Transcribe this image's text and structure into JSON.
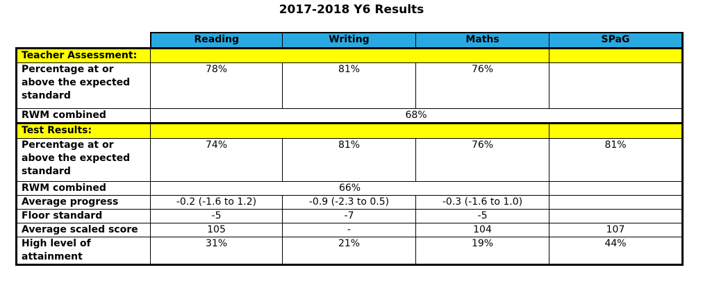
{
  "title": "2017-2018 Y6 Results",
  "table": {
    "columns": [
      "Reading",
      "Writing",
      "Maths",
      "SPaG"
    ],
    "sections": [
      {
        "heading": "Teacher Assessment:",
        "rows": [
          {
            "label": "Percentage at or above the expected standard",
            "cells": [
              "78%",
              "81%",
              "76%"
            ]
          },
          {
            "label": "RWM combined",
            "cells": [
              "68%"
            ]
          }
        ]
      },
      {
        "heading": "Test Results:",
        "rows": [
          {
            "label": "Percentage at or above the expected standard",
            "cells": [
              "74%",
              "81%",
              "76%",
              "81%"
            ]
          },
          {
            "label": "RWM combined",
            "cells": [
              "66%"
            ]
          },
          {
            "label": "Average progress",
            "cells": [
              "-0.2 (-1.6 to 1.2)",
              "-0.9 (-2.3 to 0.5)",
              "-0.3 (-1.6 to 1.0)"
            ]
          },
          {
            "label": "Floor standard",
            "cells": [
              "-5",
              "-7",
              "-5"
            ]
          },
          {
            "label": "Average scaled score",
            "cells": [
              "105",
              "-",
              "104",
              "107"
            ]
          },
          {
            "label": "High level of attainment",
            "cells": [
              "31%",
              "21%",
              "19%",
              "44%"
            ]
          }
        ]
      }
    ]
  }
}
